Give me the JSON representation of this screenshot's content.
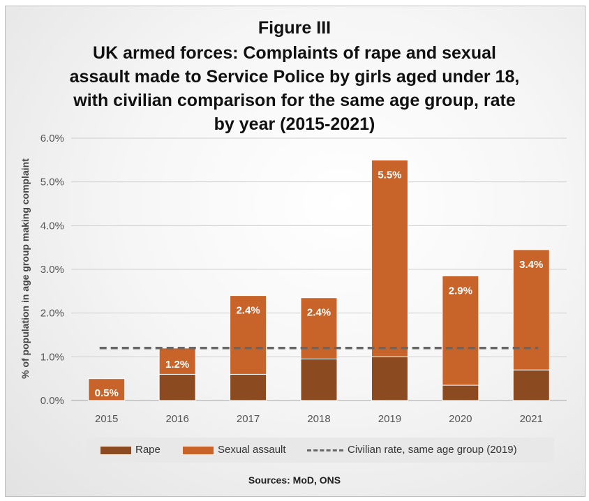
{
  "chart_data": {
    "type": "bar",
    "stacked": true,
    "title_lines": [
      "Figure III",
      "UK armed forces: Complaints of rape and sexual",
      "assault made to Service Police by girls aged under 18,",
      "with civilian comparison for the same age group, rate",
      "by year (2015-2021)"
    ],
    "ylabel": "% of population in age group making complaint",
    "xlabel": "",
    "categories": [
      "2015",
      "2016",
      "2017",
      "2018",
      "2019",
      "2020",
      "2021"
    ],
    "series": [
      {
        "name": "Rape",
        "values": [
          0.0,
          0.6,
          0.6,
          0.95,
          1.0,
          0.35,
          0.7
        ],
        "color": "#8b4a1f"
      },
      {
        "name": "Sexual assault",
        "values": [
          0.5,
          0.6,
          1.8,
          1.4,
          4.5,
          2.5,
          2.75
        ],
        "color": "#c8642a"
      }
    ],
    "totals_labels": [
      "0.5%",
      "1.2%",
      "2.4%",
      "2.4%",
      "5.5%",
      "2.9%",
      "3.4%"
    ],
    "reference_line": {
      "name": "Civilian rate, same age group (2019)",
      "value": 1.2,
      "color": "#666666",
      "style": "dashed"
    },
    "ylim": [
      0,
      6
    ],
    "yticks": [
      "0.0%",
      "1.0%",
      "2.0%",
      "3.0%",
      "4.0%",
      "5.0%",
      "6.0%"
    ],
    "grid": true,
    "legend_position": "bottom",
    "source": "Sources: MoD, ONS"
  }
}
